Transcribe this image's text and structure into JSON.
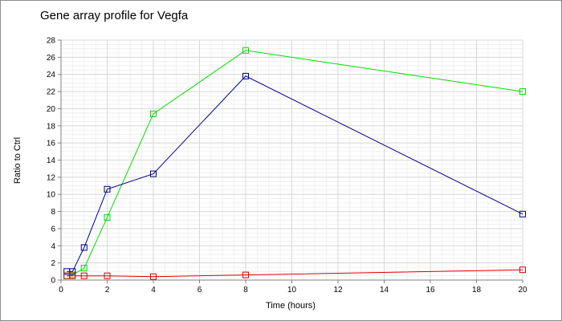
{
  "chart_data": {
    "type": "line",
    "title": "Gene array profile for Vegfa",
    "xlabel": "Time (hours)",
    "ylabel": "Ratio to Ctrl",
    "xlim": [
      0,
      20
    ],
    "ylim": [
      0,
      28
    ],
    "xticks": [
      0,
      2,
      4,
      6,
      8,
      10,
      12,
      14,
      16,
      18,
      20
    ],
    "yticks": [
      0,
      2,
      4,
      6,
      8,
      10,
      12,
      14,
      16,
      18,
      20,
      22,
      24,
      26,
      28
    ],
    "grid": true,
    "legend": "none",
    "series": [
      {
        "color": "#00dd00",
        "x": [
          0.25,
          0.5,
          1,
          2,
          4,
          8,
          20
        ],
        "y": [
          0.5,
          0.6,
          1.4,
          7.3,
          19.4,
          26.8,
          22.0
        ]
      },
      {
        "color": "#00008b",
        "x": [
          0.25,
          0.5,
          1,
          2,
          4,
          8,
          20
        ],
        "y": [
          1.0,
          1.0,
          3.8,
          10.6,
          12.4,
          23.8,
          7.7
        ]
      },
      {
        "color": "#dd0000",
        "x": [
          0.25,
          0.5,
          1,
          2,
          4,
          8,
          20
        ],
        "y": [
          0.5,
          0.5,
          0.5,
          0.5,
          0.4,
          0.6,
          1.2
        ]
      }
    ]
  }
}
